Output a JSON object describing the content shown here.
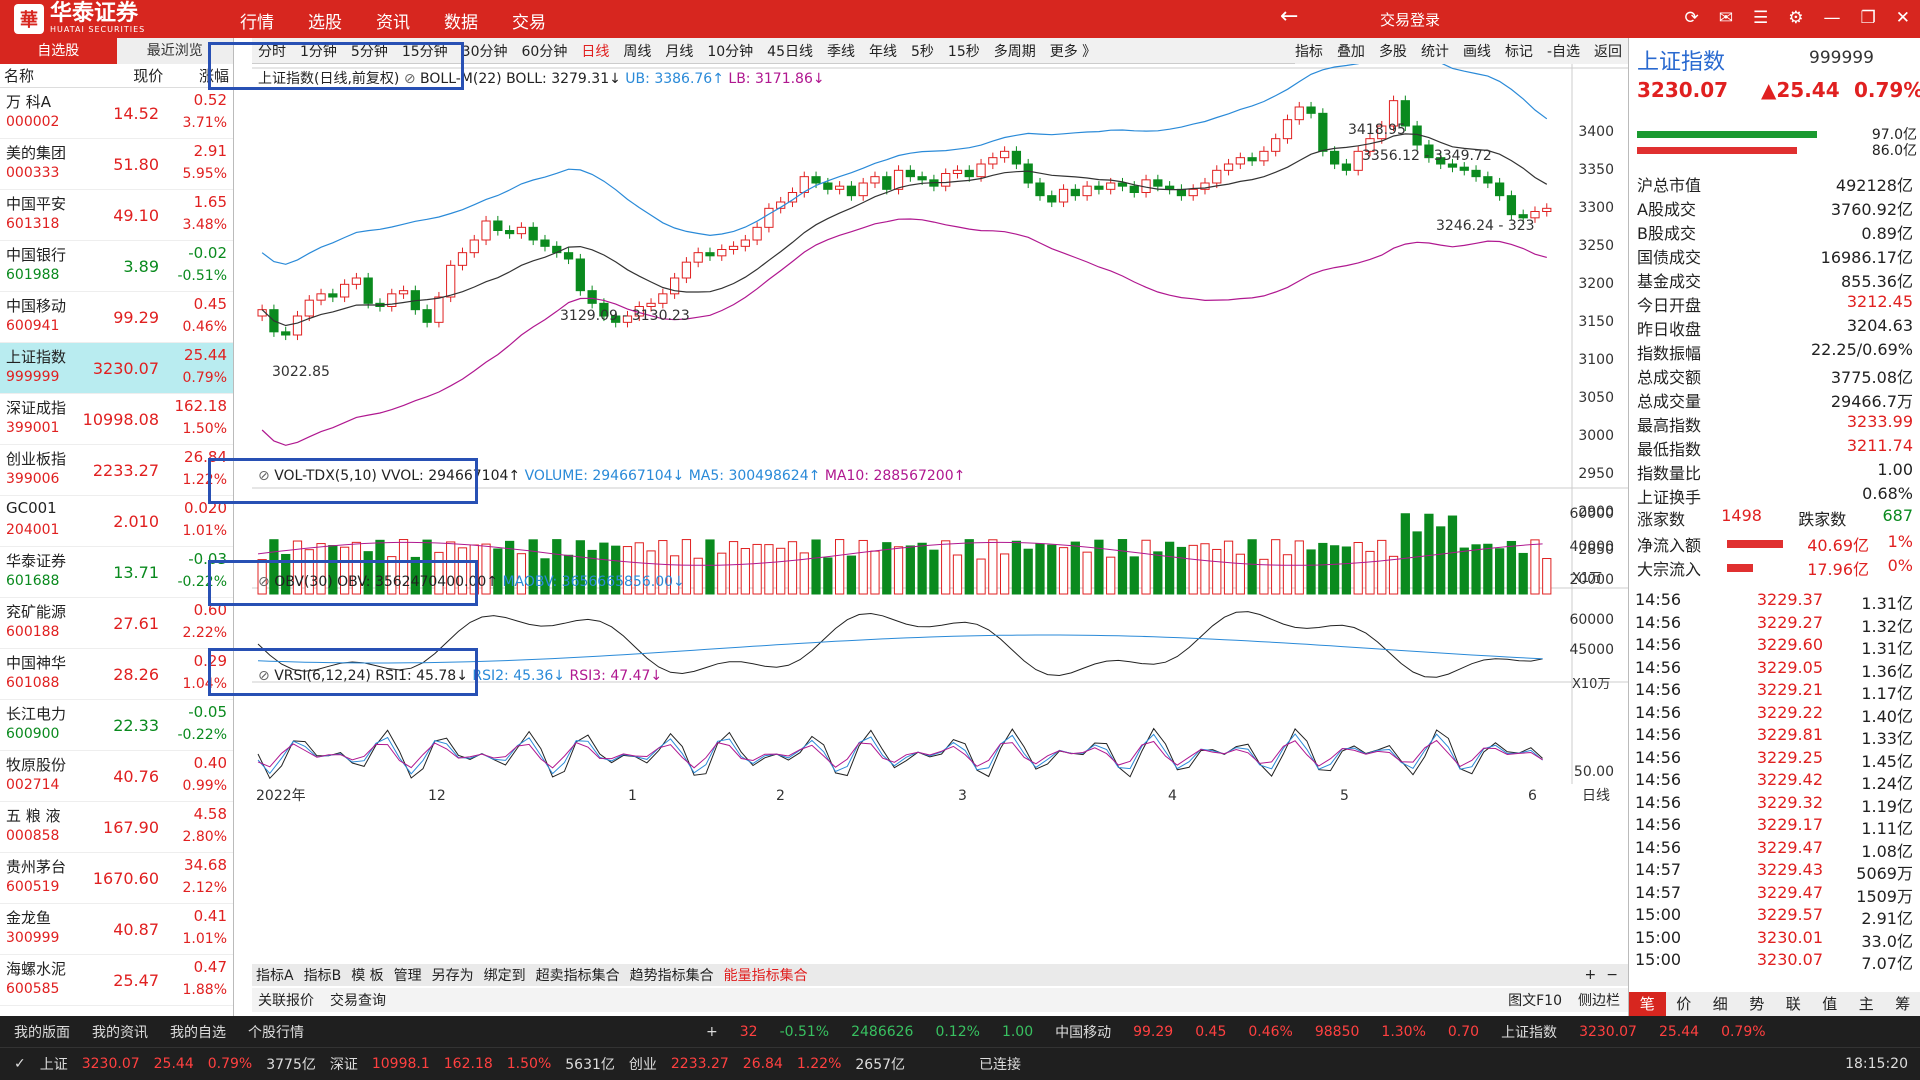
{
  "app": {
    "brand": "华泰证券",
    "brand_en": "HUATAI SECURITIES",
    "trade_login": "交易登录",
    "clock": "18:15:20"
  },
  "top_menu": [
    "行情",
    "选股",
    "资讯",
    "数据",
    "交易"
  ],
  "left": {
    "tabs": [
      "自选股",
      "最近浏览"
    ],
    "headers": [
      "名称",
      "现价",
      "涨幅"
    ],
    "stocks": [
      {
        "name": "万 科A",
        "code": "000002",
        "price": "14.52",
        "chg": "0.52",
        "pct": "3.71%",
        "dir": "up"
      },
      {
        "name": "美的集团",
        "code": "000333",
        "price": "51.80",
        "chg": "2.91",
        "pct": "5.95%",
        "dir": "up"
      },
      {
        "name": "中国平安",
        "code": "601318",
        "price": "49.10",
        "chg": "1.65",
        "pct": "3.48%",
        "dir": "up"
      },
      {
        "name": "中国银行",
        "code": "601988",
        "price": "3.89",
        "chg": "-0.02",
        "pct": "-0.51%",
        "dir": "down"
      },
      {
        "name": "中国移动",
        "code": "600941",
        "price": "99.29",
        "chg": "0.45",
        "pct": "0.46%",
        "dir": "up"
      },
      {
        "name": "上证指数",
        "code": "999999",
        "price": "3230.07",
        "chg": "25.44",
        "pct": "0.79%",
        "dir": "up"
      },
      {
        "name": "深证成指",
        "code": "399001",
        "price": "10998.08",
        "chg": "162.18",
        "pct": "1.50%",
        "dir": "up"
      },
      {
        "name": "创业板指",
        "code": "399006",
        "price": "2233.27",
        "chg": "26.84",
        "pct": "1.22%",
        "dir": "up"
      },
      {
        "name": "GC001",
        "code": "204001",
        "price": "2.010",
        "chg": "0.020",
        "pct": "1.01%",
        "dir": "up"
      },
      {
        "name": "华泰证券",
        "code": "601688",
        "price": "13.71",
        "chg": "-0.03",
        "pct": "-0.22%",
        "dir": "down"
      },
      {
        "name": "兖矿能源",
        "code": "600188",
        "price": "27.61",
        "chg": "0.60",
        "pct": "2.22%",
        "dir": "up"
      },
      {
        "name": "中国神华",
        "code": "601088",
        "price": "28.26",
        "chg": "0.29",
        "pct": "1.04%",
        "dir": "up"
      },
      {
        "name": "长江电力",
        "code": "600900",
        "price": "22.33",
        "chg": "-0.05",
        "pct": "-0.22%",
        "dir": "down"
      },
      {
        "name": "牧原股份",
        "code": "002714",
        "price": "40.76",
        "chg": "0.40",
        "pct": "0.99%",
        "dir": "up"
      },
      {
        "name": "五 粮 液",
        "code": "000858",
        "price": "167.90",
        "chg": "4.58",
        "pct": "2.80%",
        "dir": "up"
      },
      {
        "name": "贵州茅台",
        "code": "600519",
        "price": "1670.60",
        "chg": "34.68",
        "pct": "2.12%",
        "dir": "up"
      },
      {
        "name": "金龙鱼",
        "code": "300999",
        "price": "40.87",
        "chg": "0.41",
        "pct": "1.01%",
        "dir": "up"
      },
      {
        "name": "海螺水泥",
        "code": "600585",
        "price": "25.47",
        "chg": "0.47",
        "pct": "1.88%",
        "dir": "up"
      }
    ]
  },
  "chart": {
    "periods": [
      "分时",
      "1分钟",
      "5分钟",
      "15分钟",
      "30分钟",
      "60分钟",
      "日线",
      "周线",
      "月线",
      "10分钟",
      "45日线",
      "季线",
      "年线",
      "5秒",
      "15秒",
      "多周期",
      "更多 》"
    ],
    "active_period": "日线",
    "tools": [
      "指标",
      "叠加",
      "多股",
      "统计",
      "画线",
      "标记",
      "-自选",
      "返回"
    ],
    "main_label": "上证指数(日线,前复权)",
    "boll_label": "BOLL-M(22) BOLL: 3279.31↓",
    "ub_label": "UB: 3386.76↑",
    "lb_label": "LB: 3171.86↓",
    "price_axis": [
      "3400",
      "3350",
      "3300",
      "3250",
      "3200",
      "3150",
      "3100",
      "3050",
      "3000",
      "2950",
      "2900",
      "2850"
    ],
    "annotations": [
      "3418.95",
      "3356.12 - 3349.72",
      "3246.24 - 323",
      "3129.09 - 3130.23",
      "3022.85"
    ],
    "vol_label": "VOL-TDX(5,10) VVOL: 294667104↑",
    "vol_volume": "VOLUME: 294667104↓",
    "vol_ma5": "MA5: 300498624↑",
    "vol_ma10": "MA10: 288567200↑",
    "vol_axis": [
      "60000",
      "40000",
      "20000"
    ],
    "vol_unit": "X1万",
    "obv_label": "OBV(30) OBV: 3562470400.00↑",
    "obv_ma": "MAOBV: 3656665856.00↓",
    "obv_axis": [
      "60000",
      "45000"
    ],
    "obv_unit": "X10万",
    "vrsi_label": "VRSI(6,12,24) RSI1: 45.78↓",
    "vrsi_2": "RSI2: 45.36↓",
    "vrsi_3": "RSI3: 47.47↓",
    "vrsi_axis": [
      "50.00"
    ],
    "date_axis": [
      "2022年",
      "12",
      "1",
      "2",
      "3",
      "4",
      "5",
      "6"
    ],
    "day_line": "日线",
    "bottom_tabs": [
      "指标A",
      "指标B",
      "模 板",
      "管理",
      "另存为",
      "绑定到",
      "超卖指标集合",
      "趋势指标集合",
      "能量指标集合"
    ],
    "active_bottom_tab": "能量指标集合",
    "bottom_tools": [
      "关联报价",
      "交易查询"
    ],
    "bottom_right": [
      "图文F10",
      "侧边栏"
    ]
  },
  "right": {
    "title": "上证指数",
    "code": "999999",
    "price": "3230.07",
    "chg": "▲25.44",
    "pct": "0.79%",
    "bar_vals": [
      "97.0亿",
      "86.0亿"
    ],
    "stats": [
      {
        "k": "沪总市值",
        "v": "492128亿",
        "c": ""
      },
      {
        "k": "A股成交",
        "v": "3760.92亿",
        "c": ""
      },
      {
        "k": "B股成交",
        "v": "0.89亿",
        "c": ""
      },
      {
        "k": "国债成交",
        "v": "16986.17亿",
        "c": ""
      },
      {
        "k": "基金成交",
        "v": "855.36亿",
        "c": ""
      },
      {
        "k": "今日开盘",
        "v": "3212.45",
        "c": "up"
      },
      {
        "k": "昨日收盘",
        "v": "3204.63",
        "c": ""
      },
      {
        "k": "指数振幅",
        "v": "22.25/0.69%",
        "c": ""
      },
      {
        "k": "总成交额",
        "v": "3775.08亿",
        "c": ""
      },
      {
        "k": "总成交量",
        "v": "29466.7万",
        "c": ""
      },
      {
        "k": "最高指数",
        "v": "3233.99",
        "c": "up"
      },
      {
        "k": "最低指数",
        "v": "3211.74",
        "c": "up"
      },
      {
        "k": "指数量比",
        "v": "1.00",
        "c": ""
      },
      {
        "k": "上证换手",
        "v": "0.68%",
        "c": ""
      }
    ],
    "up_count_label": "涨家数",
    "up_count": "1498",
    "down_count_label": "跌家数",
    "down_count": "687",
    "flows": [
      {
        "k": "净流入额",
        "v": "40.69亿",
        "p": "1%"
      },
      {
        "k": "大宗流入",
        "v": "17.96亿",
        "p": "0%"
      }
    ],
    "ticks": [
      {
        "t": "14:56",
        "p": "3229.37",
        "v": "1.31亿"
      },
      {
        "t": "14:56",
        "p": "3229.27",
        "v": "1.32亿"
      },
      {
        "t": "14:56",
        "p": "3229.60",
        "v": "1.31亿"
      },
      {
        "t": "14:56",
        "p": "3229.05",
        "v": "1.36亿"
      },
      {
        "t": "14:56",
        "p": "3229.21",
        "v": "1.17亿"
      },
      {
        "t": "14:56",
        "p": "3229.22",
        "v": "1.40亿"
      },
      {
        "t": "14:56",
        "p": "3229.81",
        "v": "1.33亿"
      },
      {
        "t": "14:56",
        "p": "3229.25",
        "v": "1.45亿"
      },
      {
        "t": "14:56",
        "p": "3229.42",
        "v": "1.24亿"
      },
      {
        "t": "14:56",
        "p": "3229.32",
        "v": "1.19亿"
      },
      {
        "t": "14:56",
        "p": "3229.17",
        "v": "1.11亿"
      },
      {
        "t": "14:56",
        "p": "3229.47",
        "v": "1.08亿"
      },
      {
        "t": "14:57",
        "p": "3229.43",
        "v": "5069万"
      },
      {
        "t": "14:57",
        "p": "3229.47",
        "v": "1509万"
      },
      {
        "t": "15:00",
        "p": "3229.57",
        "v": "2.91亿"
      },
      {
        "t": "15:00",
        "p": "3230.01",
        "v": "33.0亿"
      },
      {
        "t": "15:00",
        "p": "3230.07",
        "v": "7.07亿"
      }
    ],
    "bottom_tabs": [
      "笔",
      "价",
      "细",
      "势",
      "联",
      "值",
      "主",
      "筹"
    ]
  },
  "status": {
    "row1": [
      "我的版面",
      "我的资讯",
      "我的自选",
      "个股行情"
    ],
    "row1_quote": [
      "32",
      "-0.51%",
      "2486626",
      "0.12%",
      "1.00"
    ],
    "row1_stock": [
      "中国移动",
      "99.29",
      "0.45",
      "0.46%",
      "98850",
      "1.30%",
      "0.70"
    ],
    "row1_right": [
      "上证指数",
      "3230.07",
      "25.44",
      "0.79%"
    ],
    "row2": [
      {
        "k": "上证",
        "v": "3230.07",
        "c": "25.44",
        "p": "0.79%",
        "a": "3775亿"
      },
      {
        "k": "深证",
        "v": "10998.1",
        "c": "162.18",
        "p": "1.50%",
        "a": "5631亿"
      },
      {
        "k": "创业",
        "v": "2233.27",
        "c": "26.84",
        "p": "1.22%",
        "a": "2657亿"
      }
    ],
    "connection": "已连接"
  }
}
